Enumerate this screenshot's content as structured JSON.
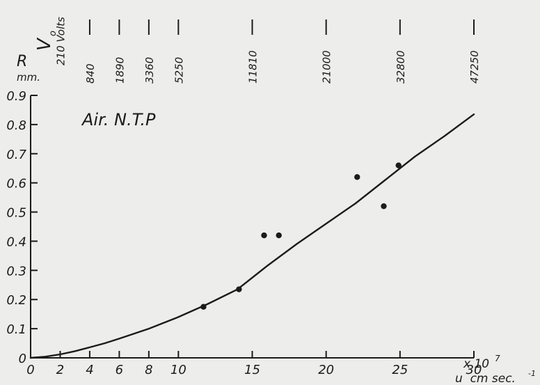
{
  "chart_data": {
    "type": "scatter",
    "title": "",
    "annotation": "Air. N.T.P",
    "ylabel": "R",
    "ylabel_unit": "mm.",
    "xlabel": "u  cm sec.",
    "xlabel_superscript": "-1",
    "x_multiplier_label": "x 10",
    "x_multiplier_exponent": "7",
    "xlim": [
      0,
      30
    ],
    "ylim": [
      0,
      0.9
    ],
    "x_ticks": [
      {
        "value": 0,
        "label": "0"
      },
      {
        "value": 2,
        "label": "2"
      },
      {
        "value": 4,
        "label": "4"
      },
      {
        "value": 6,
        "label": "6"
      },
      {
        "value": 8,
        "label": "8"
      },
      {
        "value": 10,
        "label": "10"
      },
      {
        "value": 15,
        "label": "15"
      },
      {
        "value": 20,
        "label": "20"
      },
      {
        "value": 25,
        "label": "25"
      },
      {
        "value": 30,
        "label": "30"
      }
    ],
    "y_ticks": [
      {
        "value": 0,
        "label": "0"
      },
      {
        "value": 0.1,
        "label": "0.1"
      },
      {
        "value": 0.2,
        "label": "0.2"
      },
      {
        "value": 0.3,
        "label": "0.3"
      },
      {
        "value": 0.4,
        "label": "0.4"
      },
      {
        "value": 0.5,
        "label": "0.5"
      },
      {
        "value": 0.6,
        "label": "0.6"
      },
      {
        "value": 0.7,
        "label": "0.7"
      },
      {
        "value": 0.8,
        "label": "0.8"
      },
      {
        "value": 0.9,
        "label": "0.9"
      }
    ],
    "top_axis": {
      "label": "V",
      "label_subscript": "o",
      "ticks": [
        {
          "x": 2,
          "label": "210 Volts"
        },
        {
          "x": 4,
          "label": "840"
        },
        {
          "x": 6,
          "label": "1890"
        },
        {
          "x": 8,
          "label": "3360"
        },
        {
          "x": 10,
          "label": "5250"
        },
        {
          "x": 15,
          "label": "11810"
        },
        {
          "x": 20,
          "label": "21000"
        },
        {
          "x": 25,
          "label": "32800"
        },
        {
          "x": 30,
          "label": "47250"
        }
      ]
    },
    "points": [
      {
        "x": 11.7,
        "y": 0.175
      },
      {
        "x": 14.1,
        "y": 0.235
      },
      {
        "x": 15.8,
        "y": 0.42
      },
      {
        "x": 16.8,
        "y": 0.42
      },
      {
        "x": 22.1,
        "y": 0.62
      },
      {
        "x": 23.9,
        "y": 0.52
      },
      {
        "x": 24.9,
        "y": 0.66
      }
    ],
    "curve": [
      {
        "x": 0,
        "y": 0
      },
      {
        "x": 1,
        "y": 0.004
      },
      {
        "x": 2,
        "y": 0.012
      },
      {
        "x": 3,
        "y": 0.023
      },
      {
        "x": 4,
        "y": 0.036
      },
      {
        "x": 5,
        "y": 0.05
      },
      {
        "x": 6,
        "y": 0.066
      },
      {
        "x": 8,
        "y": 0.1
      },
      {
        "x": 10,
        "y": 0.14
      },
      {
        "x": 12,
        "y": 0.185
      },
      {
        "x": 14,
        "y": 0.235
      },
      {
        "x": 16,
        "y": 0.315
      },
      {
        "x": 18,
        "y": 0.39
      },
      {
        "x": 20,
        "y": 0.46
      },
      {
        "x": 22,
        "y": 0.53
      },
      {
        "x": 24,
        "y": 0.61
      },
      {
        "x": 26,
        "y": 0.69
      },
      {
        "x": 28,
        "y": 0.76
      },
      {
        "x": 30,
        "y": 0.835
      }
    ],
    "grid": false,
    "colors": {
      "ink": "#1b1b1b",
      "paper": "#ededeb"
    }
  }
}
